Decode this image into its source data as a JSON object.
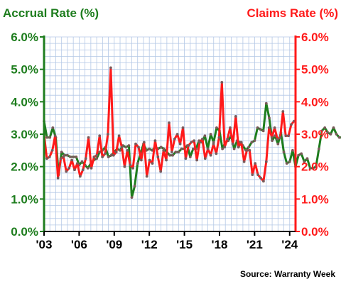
{
  "chart_data": {
    "type": "line",
    "left_axis_title": "Accrual Rate (%)",
    "right_axis_title": "Claims Rate (%)",
    "source": "Source: Warranty Week",
    "y_ticks": [
      "0.0%",
      "1.0%",
      "2.0%",
      "3.0%",
      "4.0%",
      "5.0%",
      "6.0%"
    ],
    "x_ticks": [
      {
        "label": "'03",
        "x": 2003
      },
      {
        "label": "'06",
        "x": 2006
      },
      {
        "label": "'09",
        "x": 2009
      },
      {
        "label": "'12",
        "x": 2012
      },
      {
        "label": "'15",
        "x": 2015
      },
      {
        "label": "'18",
        "x": 2018
      },
      {
        "label": "'21",
        "x": 2021
      },
      {
        "label": "'24",
        "x": 2024
      }
    ],
    "xlim": [
      2003,
      2024.5
    ],
    "ylim": [
      0,
      6
    ],
    "grid": true,
    "colors": {
      "accrual": "#1e7d1e",
      "claims": "#ff1a1a",
      "grid": "#b4c8e6",
      "marker": "#7a5a5a"
    },
    "series": [
      {
        "name": "Accrual Rate (%)",
        "axis": "left",
        "color": "#1e7d1e",
        "values": [
          3.4,
          2.9,
          2.9,
          3.2,
          2.9,
          1.75,
          2.45,
          2.35,
          2.35,
          2.3,
          2.3,
          2.3,
          2.05,
          2.15,
          2.05,
          1.95,
          2.1,
          2.2,
          2.25,
          2.45,
          2.5,
          2.6,
          2.3,
          2.35,
          2.45,
          2.55,
          2.5,
          2.65,
          2.6,
          2.65,
          1.05,
          1.4,
          2.1,
          2.4,
          2.7,
          2.5,
          2.55,
          2.5,
          2.6,
          2.55,
          2.6,
          2.55,
          2.45,
          2.35,
          2.35,
          2.45,
          2.45,
          2.55,
          2.55,
          2.65,
          2.3,
          2.55,
          2.55,
          2.8,
          2.75,
          2.95,
          2.55,
          3.0,
          2.75,
          3.2,
          3.1,
          2.55,
          2.75,
          2.8,
          2.95,
          2.55,
          2.8,
          2.75,
          2.65,
          2.5,
          2.6,
          2.75,
          2.8,
          3.2,
          3.15,
          3.1,
          3.95,
          3.5,
          2.8,
          2.95,
          2.7,
          3.05,
          2.45,
          2.1,
          2.15,
          2.5,
          2.0,
          2.35,
          2.4,
          2.15,
          2.25,
          1.95,
          1.95,
          2.0,
          2.55,
          3.1,
          3.2,
          3.05,
          3.0,
          3.2,
          3.0,
          2.9,
          2.9
        ],
        "x_start": 2003.0,
        "x_step": 0.25
      },
      {
        "name": "Claims Rate (%)",
        "axis": "right",
        "color": "#ff1a1a",
        "values": [
          3.0,
          2.25,
          2.3,
          2.5,
          2.95,
          1.65,
          2.25,
          2.3,
          1.85,
          1.95,
          2.2,
          1.9,
          2.1,
          1.7,
          1.9,
          2.25,
          2.9,
          1.95,
          2.3,
          2.35,
          2.95,
          2.3,
          2.4,
          3.0,
          5.05,
          2.35,
          2.45,
          2.95,
          2.6,
          2.0,
          2.5,
          2.05,
          1.95,
          2.7,
          2.6,
          2.2,
          2.75,
          1.7,
          2.2,
          2.1,
          2.8,
          2.3,
          1.85,
          2.5,
          2.2,
          3.35,
          2.45,
          2.85,
          3.0,
          2.7,
          3.2,
          2.25,
          2.65,
          2.75,
          2.8,
          2.2,
          2.75,
          2.85,
          2.25,
          2.55,
          2.35,
          2.7,
          2.4,
          2.9,
          4.6,
          2.6,
          2.85,
          3.2,
          2.7,
          3.55,
          2.6,
          2.75,
          2.15,
          2.5,
          2.5,
          1.75,
          2.1,
          1.75,
          1.65,
          1.55,
          2.15,
          3.2,
          2.9,
          3.2,
          2.85,
          2.9,
          3.7,
          2.95,
          2.95,
          3.3,
          3.4
        ],
        "x_start": 2003.0,
        "x_step": 0.2375
      }
    ]
  }
}
